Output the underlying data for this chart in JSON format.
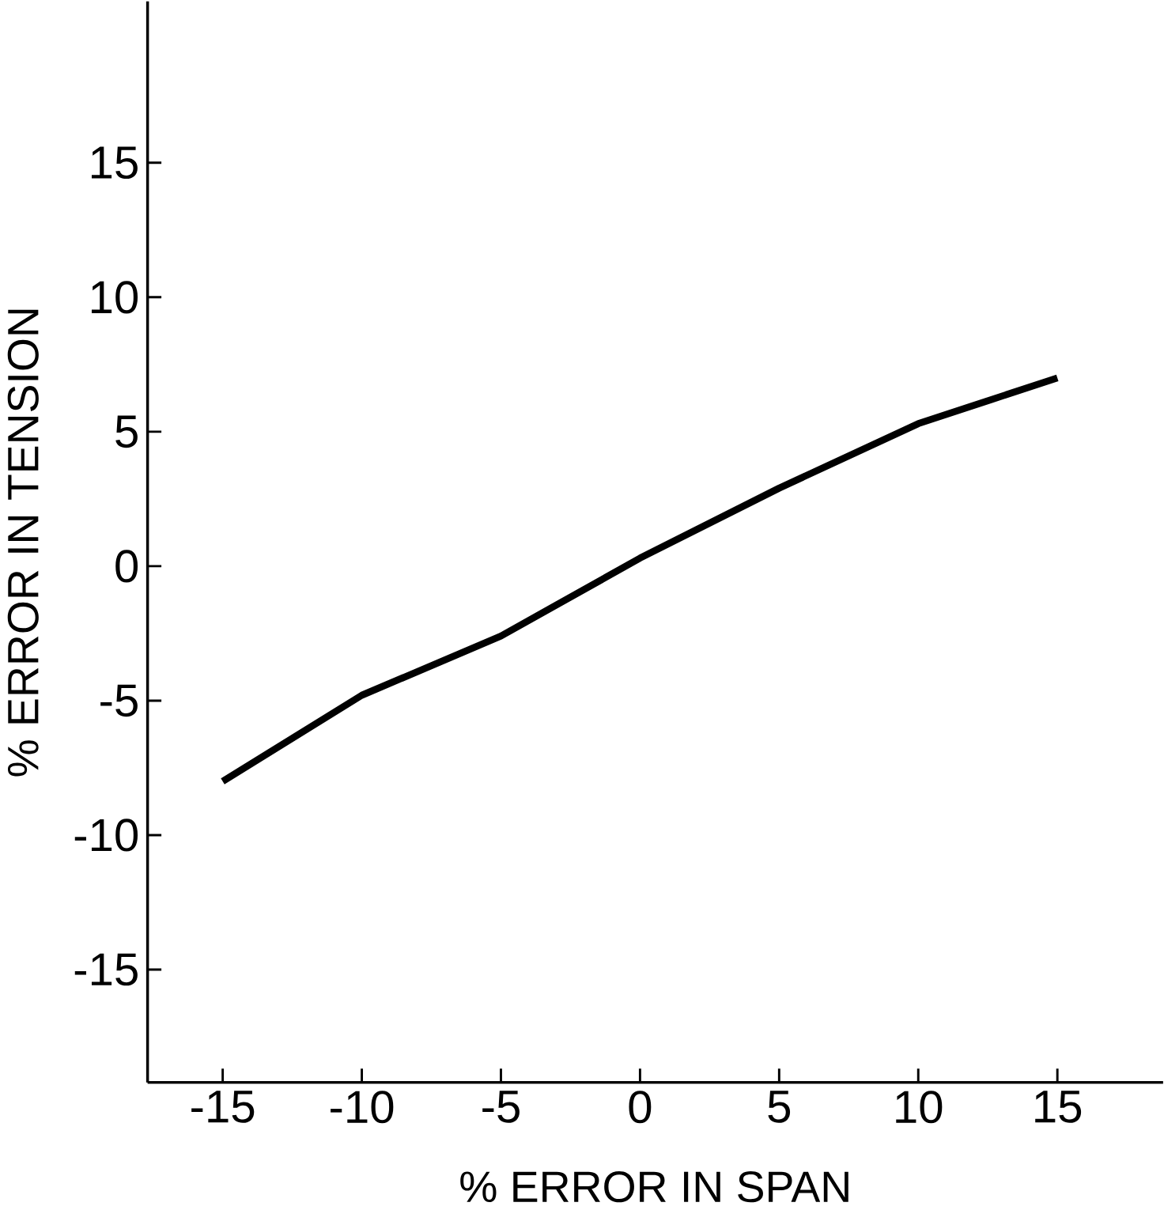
{
  "chart_data": {
    "type": "line",
    "xlabel": "% ERROR IN SPAN",
    "ylabel": "% ERROR IN TENSION",
    "x": [
      -15,
      -10,
      -5,
      0,
      5,
      10,
      15
    ],
    "series": [
      {
        "color": "#000000",
        "values": [
          -8,
          -4.8,
          -2.6,
          0.3,
          2.9,
          5.3,
          7.0
        ]
      }
    ],
    "xlim": [
      -17.7,
      18.8
    ],
    "ylim": [
      -19.2,
      21
    ],
    "xticks": [
      -15,
      -10,
      -5,
      0,
      5,
      10,
      15
    ],
    "yticks": [
      -15,
      -10,
      -5,
      0,
      5,
      10,
      15
    ],
    "marker": "none",
    "line_style": "solid"
  }
}
